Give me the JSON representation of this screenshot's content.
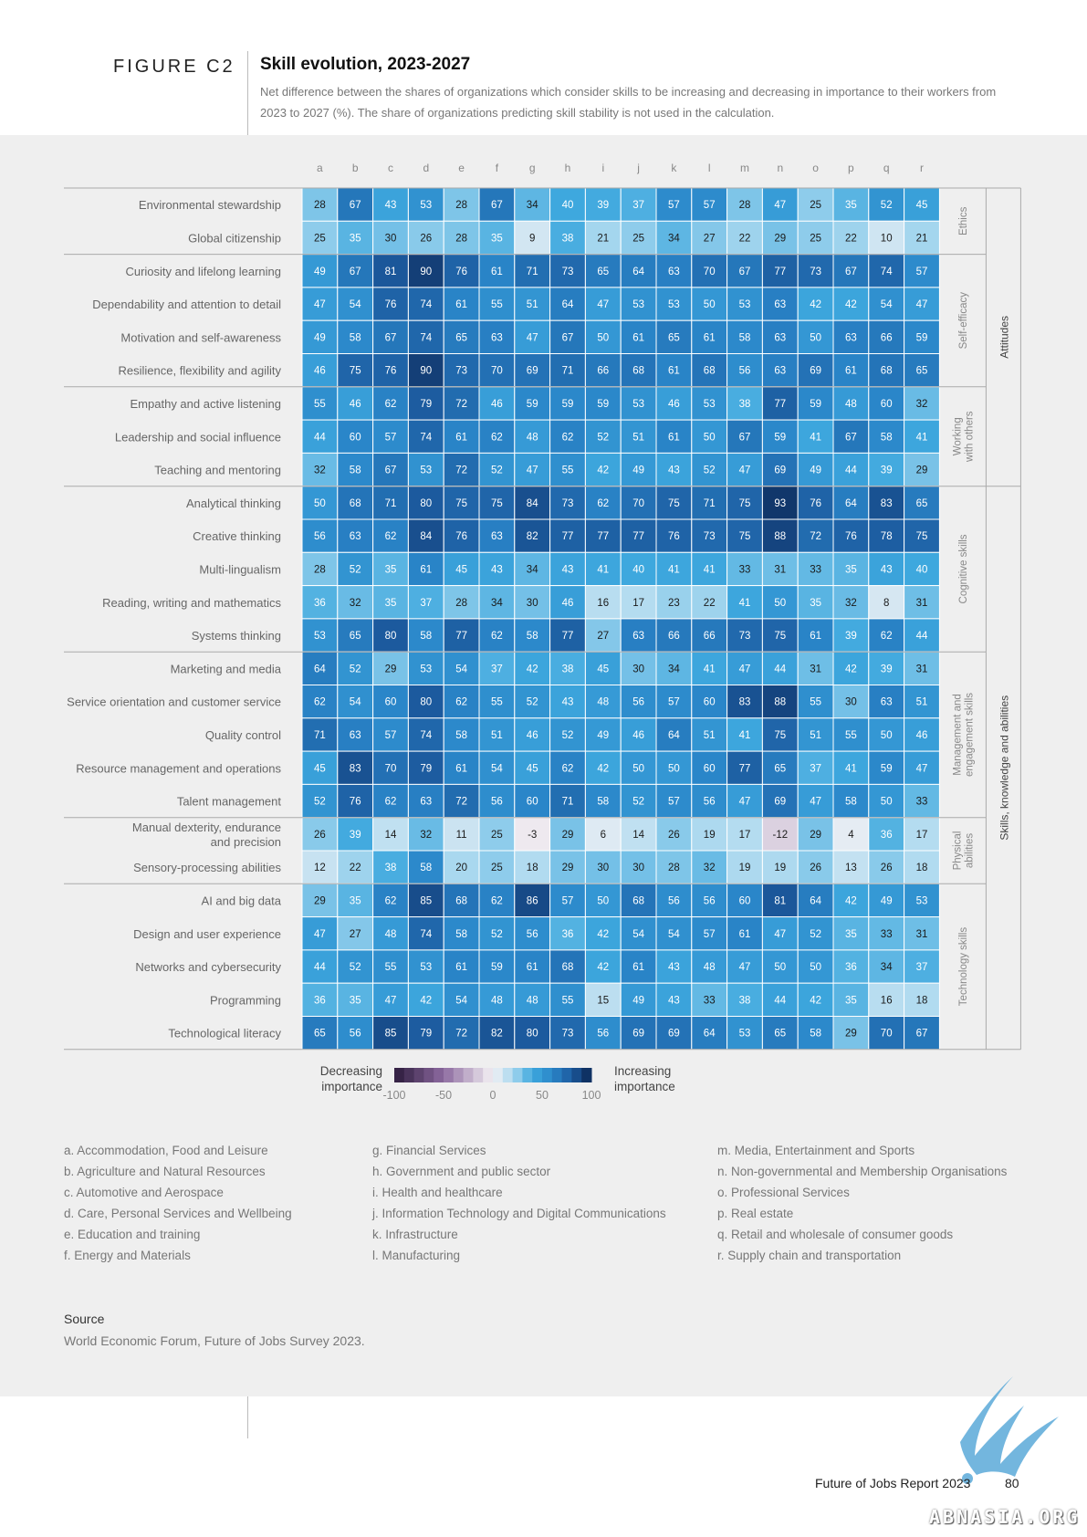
{
  "figure": {
    "label": "FIGURE C2",
    "title": "Skill evolution, 2023-2027",
    "subtitle": "Net difference between the shares of organizations which consider skills to be increasing and decreasing in importance to their workers from 2023 to 2027 (%). The share of organizations predicting skill stability is not used in the calculation."
  },
  "chart_data": {
    "type": "heatmap",
    "title": "Skill evolution, 2023-2027",
    "columns": [
      "a",
      "b",
      "c",
      "d",
      "e",
      "f",
      "g",
      "h",
      "i",
      "j",
      "k",
      "l",
      "m",
      "n",
      "o",
      "p",
      "q",
      "r"
    ],
    "rows": [
      {
        "label": "Environmental stewardship",
        "values": [
          28,
          67,
          43,
          53,
          28,
          67,
          34,
          40,
          39,
          37,
          57,
          57,
          28,
          47,
          25,
          35,
          52,
          45
        ]
      },
      {
        "label": "Global citizenship",
        "values": [
          25,
          35,
          30,
          26,
          28,
          35,
          9,
          38,
          21,
          25,
          34,
          27,
          22,
          29,
          25,
          22,
          10,
          21
        ]
      },
      {
        "label": "Curiosity and lifelong learning",
        "values": [
          49,
          67,
          81,
          90,
          76,
          61,
          71,
          73,
          65,
          64,
          63,
          70,
          67,
          77,
          73,
          67,
          74,
          57
        ]
      },
      {
        "label": "Dependability and attention to detail",
        "values": [
          47,
          54,
          76,
          74,
          61,
          55,
          51,
          64,
          47,
          53,
          53,
          50,
          53,
          63,
          42,
          42,
          54,
          47
        ]
      },
      {
        "label": "Motivation and self-awareness",
        "values": [
          49,
          58,
          67,
          74,
          65,
          63,
          47,
          67,
          50,
          61,
          65,
          61,
          58,
          63,
          50,
          63,
          66,
          59
        ]
      },
      {
        "label": "Resilience, flexibility and agility",
        "values": [
          46,
          75,
          76,
          90,
          73,
          70,
          69,
          71,
          66,
          68,
          61,
          68,
          56,
          63,
          69,
          61,
          68,
          65
        ]
      },
      {
        "label": "Empathy and active listening",
        "values": [
          55,
          46,
          62,
          79,
          72,
          46,
          59,
          59,
          59,
          53,
          46,
          53,
          38,
          77,
          59,
          48,
          60,
          32
        ]
      },
      {
        "label": "Leadership and social influence",
        "values": [
          44,
          60,
          57,
          74,
          61,
          62,
          48,
          62,
          52,
          51,
          61,
          50,
          67,
          59,
          41,
          67,
          58,
          41
        ]
      },
      {
        "label": "Teaching and mentoring",
        "values": [
          32,
          58,
          67,
          53,
          72,
          52,
          47,
          55,
          42,
          49,
          43,
          52,
          47,
          69,
          49,
          44,
          39,
          29
        ]
      },
      {
        "label": "Analytical thinking",
        "values": [
          50,
          68,
          71,
          80,
          75,
          75,
          84,
          73,
          62,
          70,
          75,
          71,
          75,
          93,
          76,
          64,
          83,
          65
        ]
      },
      {
        "label": "Creative thinking",
        "values": [
          56,
          63,
          62,
          84,
          76,
          63,
          82,
          77,
          77,
          77,
          76,
          73,
          75,
          88,
          72,
          76,
          78,
          75
        ]
      },
      {
        "label": "Multi-lingualism",
        "values": [
          28,
          52,
          35,
          61,
          45,
          43,
          34,
          43,
          41,
          40,
          41,
          41,
          33,
          31,
          33,
          35,
          43,
          40
        ]
      },
      {
        "label": "Reading, writing and mathematics",
        "values": [
          36,
          32,
          35,
          37,
          28,
          34,
          30,
          46,
          16,
          17,
          23,
          22,
          41,
          50,
          35,
          32,
          8,
          31
        ]
      },
      {
        "label": "Systems thinking",
        "values": [
          53,
          65,
          80,
          58,
          77,
          62,
          58,
          77,
          27,
          63,
          66,
          66,
          73,
          75,
          61,
          39,
          62,
          44
        ]
      },
      {
        "label": "Marketing and media",
        "values": [
          64,
          52,
          29,
          53,
          54,
          37,
          42,
          38,
          45,
          30,
          34,
          41,
          47,
          44,
          31,
          42,
          39,
          31
        ]
      },
      {
        "label": "Service orientation and customer service",
        "values": [
          62,
          54,
          60,
          80,
          62,
          55,
          52,
          43,
          48,
          56,
          57,
          60,
          83,
          88,
          55,
          30,
          63,
          51
        ]
      },
      {
        "label": "Quality control",
        "values": [
          71,
          63,
          57,
          74,
          58,
          51,
          46,
          52,
          49,
          46,
          64,
          51,
          41,
          75,
          51,
          55,
          50,
          46
        ]
      },
      {
        "label": "Resource management and operations",
        "values": [
          45,
          83,
          70,
          79,
          61,
          54,
          45,
          62,
          42,
          50,
          50,
          60,
          77,
          65,
          37,
          41,
          59,
          47
        ]
      },
      {
        "label": "Talent management",
        "values": [
          52,
          76,
          62,
          63,
          72,
          56,
          60,
          71,
          58,
          52,
          57,
          56,
          47,
          69,
          47,
          58,
          50,
          33
        ]
      },
      {
        "label": "Manual dexterity, endurance and precision",
        "label_lines": [
          "Manual dexterity, endurance",
          "and precision"
        ],
        "values": [
          26,
          39,
          14,
          32,
          11,
          25,
          -3,
          29,
          6,
          14,
          26,
          19,
          17,
          -12,
          29,
          4,
          36,
          17
        ]
      },
      {
        "label": "Sensory-processing abilities",
        "values": [
          12,
          22,
          38,
          58,
          20,
          25,
          18,
          29,
          30,
          30,
          28,
          32,
          19,
          19,
          26,
          13,
          26,
          18
        ]
      },
      {
        "label": "AI and big data",
        "values": [
          29,
          35,
          62,
          85,
          68,
          62,
          86,
          57,
          50,
          68,
          56,
          56,
          60,
          81,
          64,
          42,
          49,
          53
        ]
      },
      {
        "label": "Design and user experience",
        "values": [
          47,
          27,
          48,
          74,
          58,
          52,
          56,
          36,
          42,
          54,
          54,
          57,
          61,
          47,
          52,
          35,
          33,
          31
        ]
      },
      {
        "label": "Networks and cybersecurity",
        "values": [
          44,
          52,
          55,
          53,
          61,
          59,
          61,
          68,
          42,
          61,
          43,
          48,
          47,
          50,
          50,
          36,
          34,
          37
        ]
      },
      {
        "label": "Programming",
        "values": [
          36,
          35,
          47,
          42,
          54,
          48,
          48,
          55,
          15,
          49,
          43,
          33,
          38,
          44,
          42,
          35,
          16,
          18
        ]
      },
      {
        "label": "Technological literacy",
        "values": [
          65,
          56,
          85,
          79,
          72,
          82,
          80,
          73,
          56,
          69,
          69,
          64,
          53,
          65,
          58,
          29,
          70,
          67
        ]
      }
    ],
    "groups": [
      {
        "name": "Ethics",
        "lines": [
          "Ethics"
        ],
        "rows": [
          0,
          1
        ]
      },
      {
        "name": "Self-efficacy",
        "lines": [
          "Self-efficacy"
        ],
        "rows": [
          2,
          5
        ]
      },
      {
        "name": "Working with others",
        "lines": [
          "Working",
          "with others"
        ],
        "rows": [
          6,
          8
        ]
      },
      {
        "name": "Cognitive skills",
        "lines": [
          "Cognitive skills"
        ],
        "rows": [
          9,
          13
        ]
      },
      {
        "name": "Management and engagement skills",
        "lines": [
          "Management and",
          "engagement skills"
        ],
        "rows": [
          14,
          18
        ]
      },
      {
        "name": "Physical abilities",
        "lines": [
          "Physical",
          "abilities"
        ],
        "rows": [
          19,
          20
        ]
      },
      {
        "name": "Technology skills",
        "lines": [
          "Technology skills"
        ],
        "rows": [
          21,
          25
        ]
      }
    ],
    "supergroups": [
      {
        "name": "Attitudes",
        "rows": [
          0,
          8
        ]
      },
      {
        "name": "Skills, knowledge and abilities",
        "rows": [
          9,
          25
        ]
      }
    ],
    "color_scale": {
      "min": -100,
      "max": 100,
      "negative_color": "#6b3a7d",
      "neutral_color": "#f2eef3",
      "positive_color": "#0d2a5a",
      "stops": [
        {
          "value": -100,
          "color": "#2c1b3c"
        },
        {
          "value": -50,
          "color": "#8d6aa0"
        },
        {
          "value": 0,
          "color": "#f4f1f4"
        },
        {
          "value": 20,
          "color": "#a9d8ef"
        },
        {
          "value": 40,
          "color": "#3ea8de"
        },
        {
          "value": 60,
          "color": "#2a86c9"
        },
        {
          "value": 80,
          "color": "#1c5a9e"
        },
        {
          "value": 100,
          "color": "#0b2450"
        }
      ],
      "ticks": [
        "-100",
        "-50",
        "0",
        "50",
        "100"
      ],
      "label_left": [
        "Decreasing",
        "importance"
      ],
      "label_right": [
        "Increasing",
        "importance"
      ]
    }
  },
  "industry_legend": {
    "col1": [
      "a.  Accommodation, Food and Leisure",
      "b.  Agriculture and Natural Resources",
      "c.  Automotive and Aerospace",
      "d.  Care, Personal Services and Wellbeing",
      "e.  Education and training",
      "f.  Energy and Materials"
    ],
    "col2": [
      "g.  Financial Services",
      "h.  Government and public sector",
      "i.  Health and healthcare",
      "j.  Information Technology and Digital Communications",
      "k.  Infrastructure",
      "l.  Manufacturing"
    ],
    "col3": [
      "m. Media, Entertainment and Sports",
      "n.  Non-governmental and Membership Organisations",
      "o.  Professional Services",
      "p.  Real estate",
      "q.  Retail and wholesale of consumer goods",
      "r.  Supply chain and transportation"
    ]
  },
  "source": {
    "title": "Source",
    "text": "World Economic Forum, Future of Jobs Survey 2023."
  },
  "footer": {
    "report": "Future of Jobs Report 2023",
    "page": "80"
  },
  "watermark": {
    "text": "ABNASIA.ORG"
  }
}
